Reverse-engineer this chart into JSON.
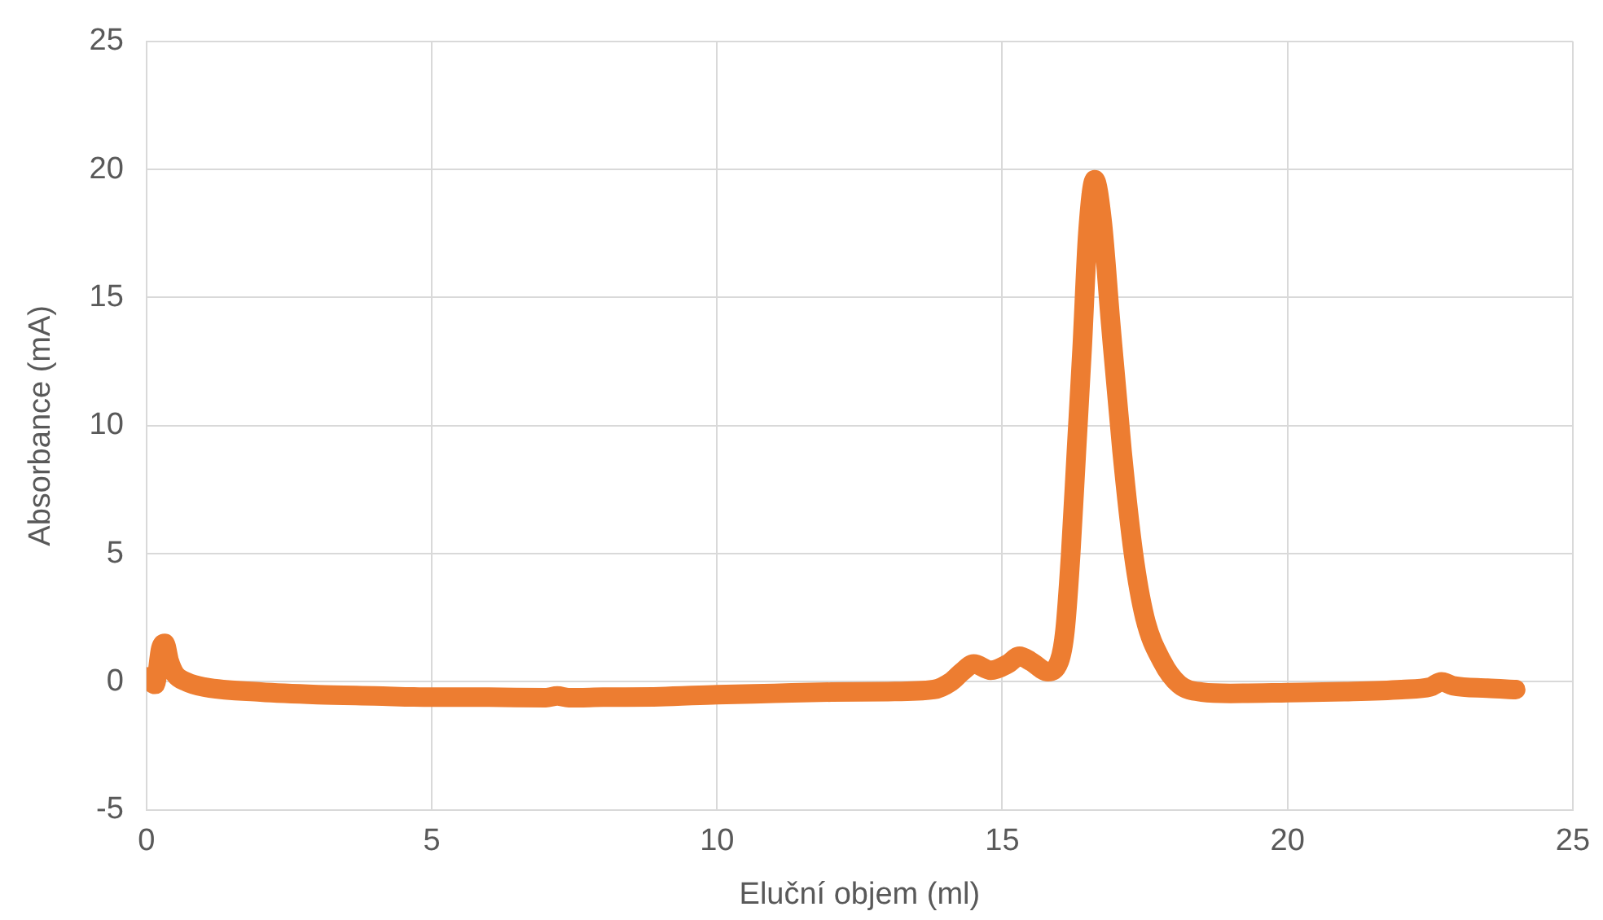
{
  "chart_data": {
    "type": "line",
    "xlabel": "Eluční objem (ml)",
    "ylabel": "Absorbance (mA)",
    "xlim": [
      0,
      25
    ],
    "xticks": [
      0,
      5,
      10,
      15,
      20,
      25
    ],
    "ylim": [
      -5,
      25
    ],
    "yticks": [
      -5,
      0,
      5,
      10,
      15,
      20,
      25
    ],
    "grid": true,
    "legend": false,
    "marker": "none",
    "line_style": "solid",
    "series": [
      {
        "color": "#ed7d31",
        "x": [
          0,
          0.15,
          0.25,
          0.32,
          0.4,
          0.5,
          0.7,
          1,
          2,
          3,
          4,
          5,
          6,
          7,
          7.2,
          7.4,
          8,
          9,
          10,
          11,
          12,
          13,
          13.8,
          14.1,
          14.3,
          14.5,
          14.8,
          15.1,
          15.3,
          15.5,
          15.8,
          16,
          16.1,
          16.2,
          16.3,
          16.4,
          16.5,
          16.62,
          16.75,
          16.9,
          17.1,
          17.3,
          17.5,
          17.8,
          18.1,
          18.5,
          19,
          20,
          21,
          22,
          22.5,
          22.7,
          22.9,
          23.5,
          24
        ],
        "values": [
          0.2,
          -0.1,
          1.3,
          1.5,
          0.8,
          0.3,
          0,
          -0.2,
          -0.4,
          -0.5,
          -0.55,
          -0.6,
          -0.6,
          -0.62,
          -0.55,
          -0.62,
          -0.6,
          -0.58,
          -0.5,
          -0.45,
          -0.4,
          -0.38,
          -0.3,
          0,
          0.4,
          0.7,
          0.45,
          0.7,
          1,
          0.8,
          0.4,
          0.8,
          2,
          5,
          9,
          13,
          17.5,
          19.6,
          18,
          14,
          9,
          5,
          2.5,
          0.8,
          -0.1,
          -0.4,
          -0.45,
          -0.42,
          -0.38,
          -0.3,
          -0.2,
          0,
          -0.15,
          -0.25,
          -0.3
        ]
      }
    ]
  }
}
